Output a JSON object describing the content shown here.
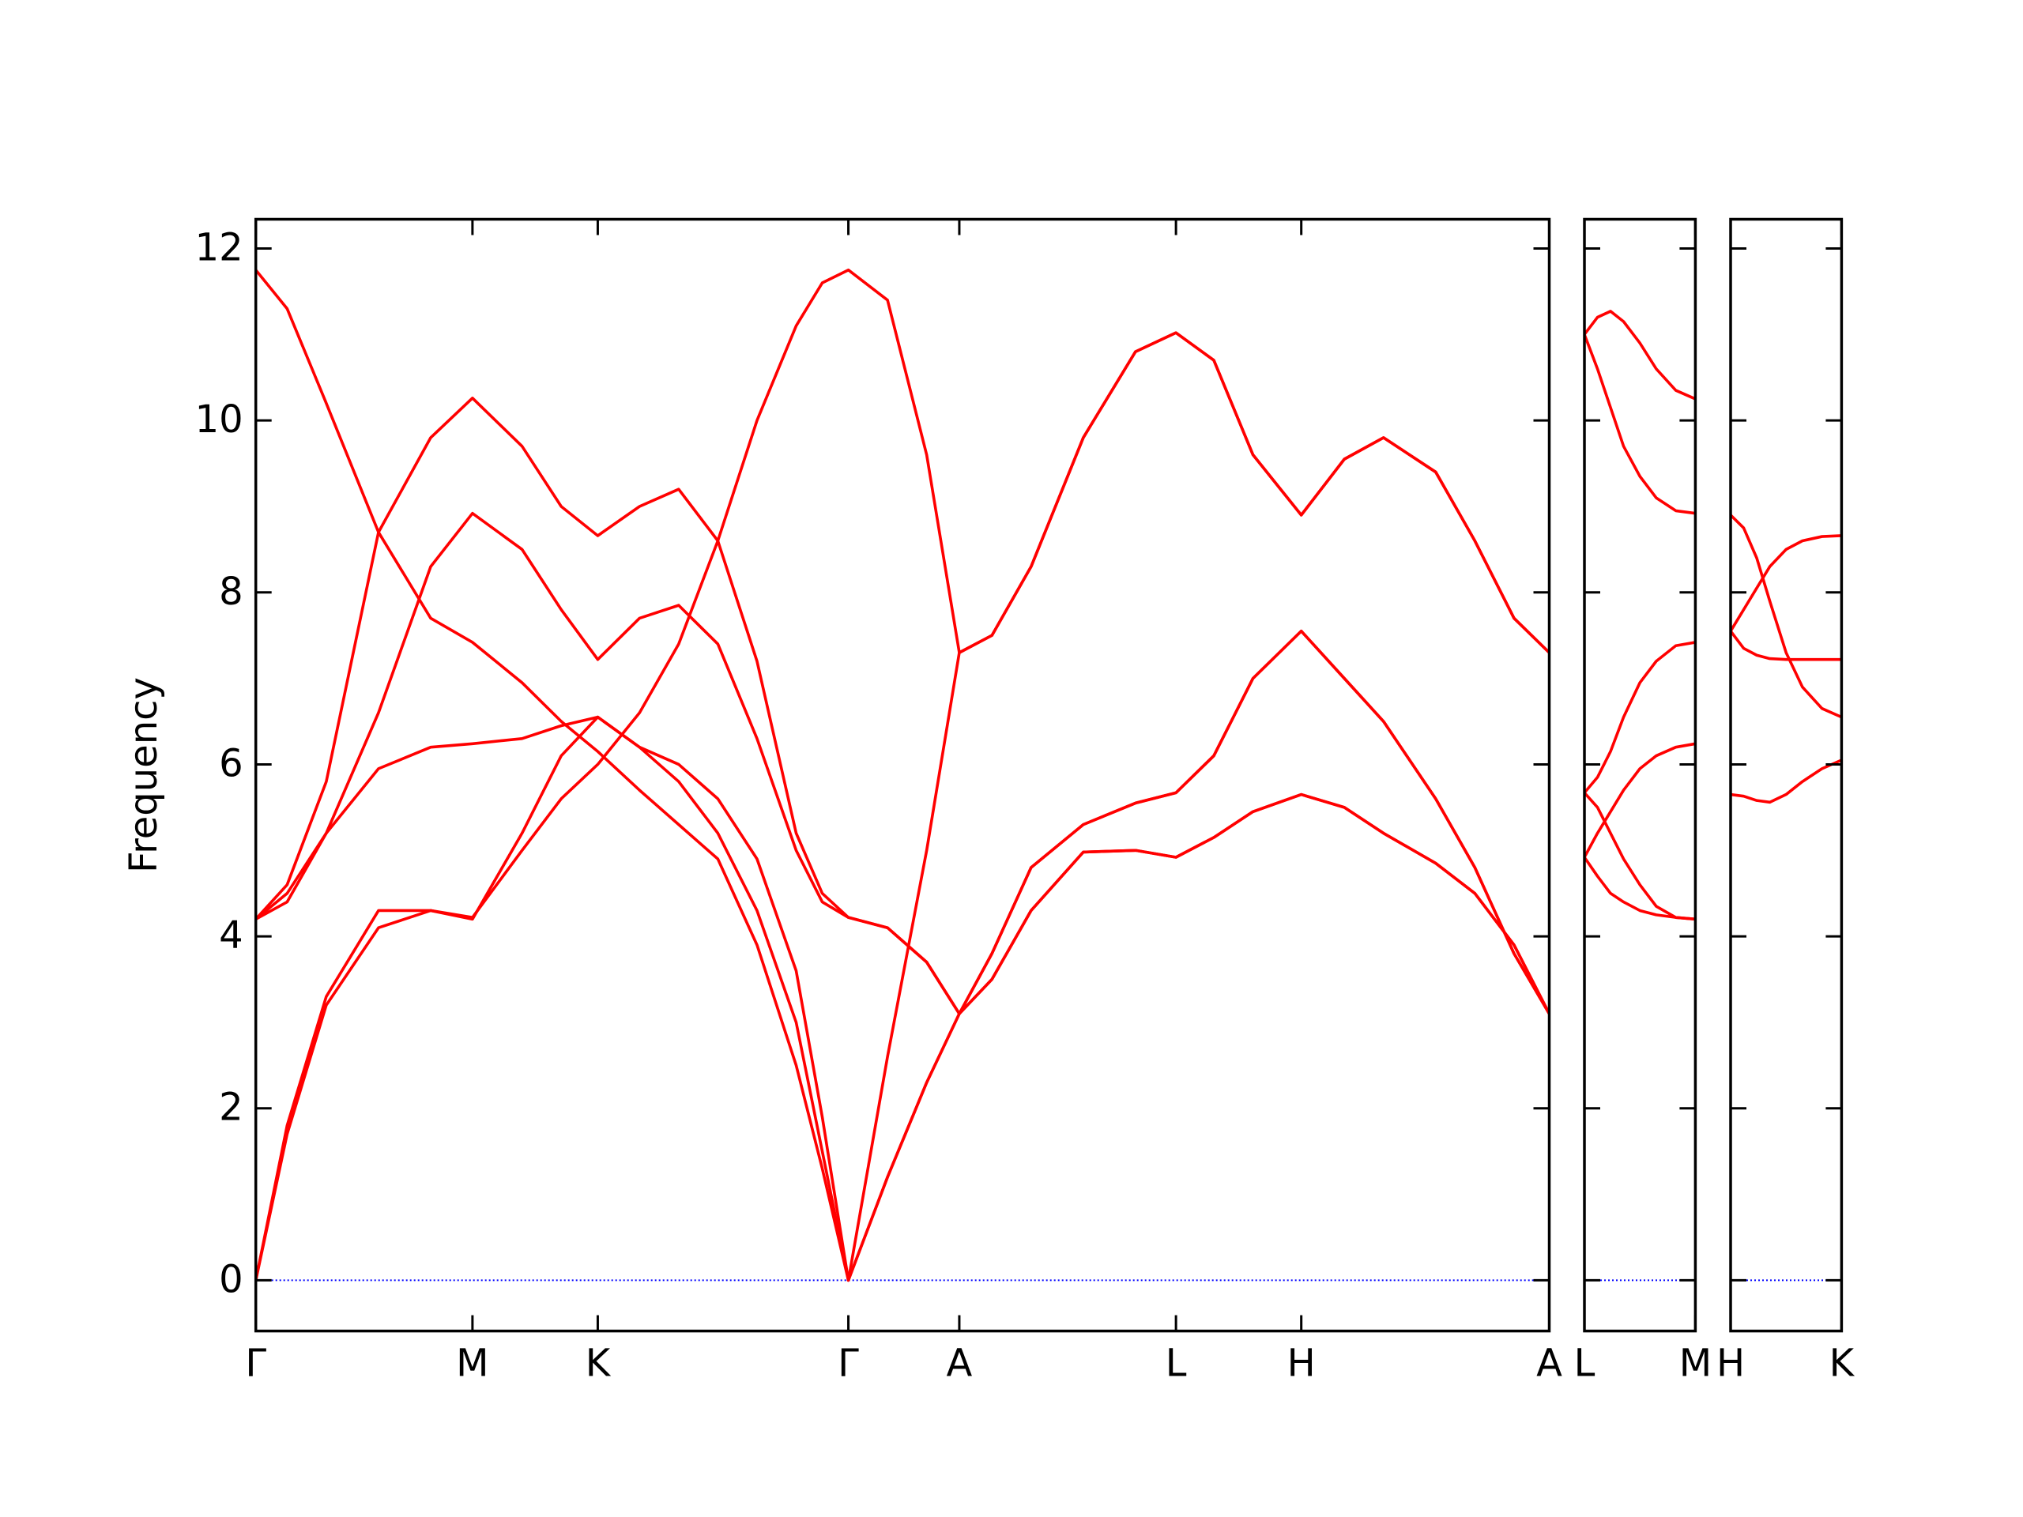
{
  "chart_data": [
    {
      "type": "line",
      "ylabel": "Frequency",
      "color": "#ff0000",
      "ytick_labels": true,
      "hline": {
        "y": 0,
        "color": "#0000ff"
      },
      "xlim": [
        0,
        9.91
      ],
      "ylim": [
        -0.59,
        12.34
      ],
      "yticks": [
        0,
        2,
        4,
        6,
        8,
        10,
        12
      ],
      "xticks": [
        {
          "value": 0,
          "label": "Γ"
        },
        {
          "value": 1.66,
          "label": "M"
        },
        {
          "value": 2.62,
          "label": "K"
        },
        {
          "value": 4.54,
          "label": "Γ"
        },
        {
          "value": 5.39,
          "label": "A"
        },
        {
          "value": 7.05,
          "label": "L"
        },
        {
          "value": 8.01,
          "label": "H"
        },
        {
          "value": 9.91,
          "label": "A"
        }
      ],
      "x": [
        0,
        0.24,
        0.54,
        0.94,
        1.34,
        1.66,
        2.04,
        2.34,
        2.62,
        2.94,
        3.24,
        3.54,
        3.84,
        4.14,
        4.34,
        4.54,
        4.84,
        5.14,
        5.39,
        5.64,
        5.94,
        6.34,
        6.74,
        7.05,
        7.34,
        7.64,
        8.01,
        8.34,
        8.64,
        9.04,
        9.34,
        9.64,
        9.91
      ],
      "series": [
        {
          "values": [
            11.75,
            11.3,
            10.2,
            8.7,
            7.7,
            7.42,
            6.95,
            6.5,
            6.15,
            5.7,
            5.3,
            4.9,
            3.9,
            2.5,
            1.3,
            0,
            2.6,
            5.0,
            7.3,
            7.5,
            8.3,
            9.8,
            10.8,
            11.02,
            10.7,
            9.6,
            8.9,
            9.55,
            9.8,
            9.4,
            8.6,
            7.7,
            7.3
          ]
        },
        {
          "values": [
            4.2,
            4.6,
            5.8,
            8.7,
            9.8,
            10.26,
            9.7,
            9.0,
            8.66,
            9.0,
            9.2,
            8.6,
            7.2,
            5.2,
            4.5,
            4.22,
            4.1,
            3.7,
            3.1,
            3.8,
            4.8,
            5.3,
            5.55,
            5.67,
            6.1,
            7.0,
            7.55,
            7.0,
            6.5,
            5.6,
            4.8,
            3.8,
            3.1
          ]
        },
        {
          "values": [
            4.2,
            4.4,
            5.2,
            6.6,
            8.3,
            8.92,
            8.5,
            7.8,
            7.22,
            7.7,
            7.85,
            7.4,
            6.3,
            5.0,
            4.4,
            4.22,
            4.1,
            3.7,
            3.1,
            3.5,
            4.3,
            4.98,
            5.0,
            4.92,
            5.15,
            5.45,
            5.65,
            5.5,
            5.2,
            4.85,
            4.5,
            3.9,
            3.1
          ]
        },
        {
          "values": [
            4.2,
            4.5,
            5.2,
            5.95,
            6.2,
            6.24,
            6.3,
            6.45,
            6.55,
            6.2,
            6.0,
            5.6,
            4.9,
            3.6,
            1.9,
            0,
            1.2,
            2.3,
            3.1,
            3.8,
            4.8,
            5.3,
            5.55,
            5.67,
            6.1,
            7.0,
            7.55,
            7.0,
            6.5,
            5.6,
            4.8,
            3.8,
            3.1
          ]
        },
        {
          "values": [
            0,
            1.7,
            3.2,
            4.1,
            4.3,
            4.22,
            5.0,
            5.6,
            6.0,
            6.6,
            7.4,
            8.6,
            10.0,
            11.1,
            11.6,
            11.75,
            11.4,
            9.6,
            7.3,
            7.5,
            8.3,
            9.8,
            10.8,
            11.02,
            10.7,
            9.6,
            8.9,
            9.55,
            9.8,
            9.4,
            8.6,
            7.7,
            7.3
          ]
        },
        {
          "values": [
            0,
            1.8,
            3.3,
            4.3,
            4.3,
            4.2,
            5.2,
            6.1,
            6.55,
            6.2,
            5.8,
            5.2,
            4.3,
            3.0,
            1.5,
            0,
            1.2,
            2.3,
            3.1,
            3.5,
            4.3,
            4.98,
            5.0,
            4.92,
            5.15,
            5.45,
            5.65,
            5.5,
            5.2,
            4.85,
            4.5,
            3.9,
            3.1
          ]
        }
      ]
    },
    {
      "type": "line",
      "color": "#ff0000",
      "ytick_labels": false,
      "hline": {
        "y": 0,
        "color": "#0000ff"
      },
      "xlim": [
        0,
        0.85
      ],
      "ylim": [
        -0.59,
        12.34
      ],
      "yticks": [
        0,
        2,
        4,
        6,
        8,
        10,
        12
      ],
      "xticks": [
        {
          "value": 0,
          "label": "L"
        },
        {
          "value": 0.85,
          "label": "M"
        }
      ],
      "x": [
        0,
        0.1,
        0.2,
        0.3,
        0.425,
        0.55,
        0.7,
        0.85
      ],
      "series": [
        {
          "values": [
            11.0,
            11.2,
            11.27,
            11.15,
            10.9,
            10.6,
            10.35,
            10.25
          ]
        },
        {
          "values": [
            11.0,
            10.6,
            10.15,
            9.7,
            9.35,
            9.1,
            8.95,
            8.92
          ]
        },
        {
          "values": [
            5.67,
            5.85,
            6.15,
            6.55,
            6.95,
            7.2,
            7.38,
            7.42
          ]
        },
        {
          "values": [
            4.92,
            5.2,
            5.45,
            5.7,
            5.95,
            6.1,
            6.2,
            6.24
          ]
        },
        {
          "values": [
            5.67,
            5.5,
            5.2,
            4.9,
            4.6,
            4.35,
            4.22,
            4.2
          ]
        },
        {
          "values": [
            4.92,
            4.7,
            4.5,
            4.4,
            4.3,
            4.25,
            4.22,
            4.2
          ]
        }
      ]
    },
    {
      "type": "line",
      "color": "#ff0000",
      "ytick_labels": false,
      "hline": {
        "y": 0,
        "color": "#0000ff"
      },
      "xlim": [
        0,
        0.85
      ],
      "ylim": [
        -0.59,
        12.34
      ],
      "yticks": [
        0,
        2,
        4,
        6,
        8,
        10,
        12
      ],
      "xticks": [
        {
          "value": 0,
          "label": "H"
        },
        {
          "value": 0.85,
          "label": "K"
        }
      ],
      "x": [
        0,
        0.1,
        0.2,
        0.3,
        0.425,
        0.55,
        0.7,
        0.85
      ],
      "series": [
        {
          "values": [
            8.9,
            8.75,
            8.4,
            7.9,
            7.3,
            6.9,
            6.65,
            6.55
          ]
        },
        {
          "values": [
            7.55,
            7.8,
            8.05,
            8.3,
            8.5,
            8.6,
            8.65,
            8.66
          ]
        },
        {
          "values": [
            7.55,
            7.35,
            7.27,
            7.23,
            7.22,
            7.22,
            7.22,
            7.22
          ]
        },
        {
          "values": [
            5.65,
            5.63,
            5.58,
            5.56,
            5.65,
            5.8,
            5.95,
            6.05
          ]
        }
      ]
    }
  ]
}
